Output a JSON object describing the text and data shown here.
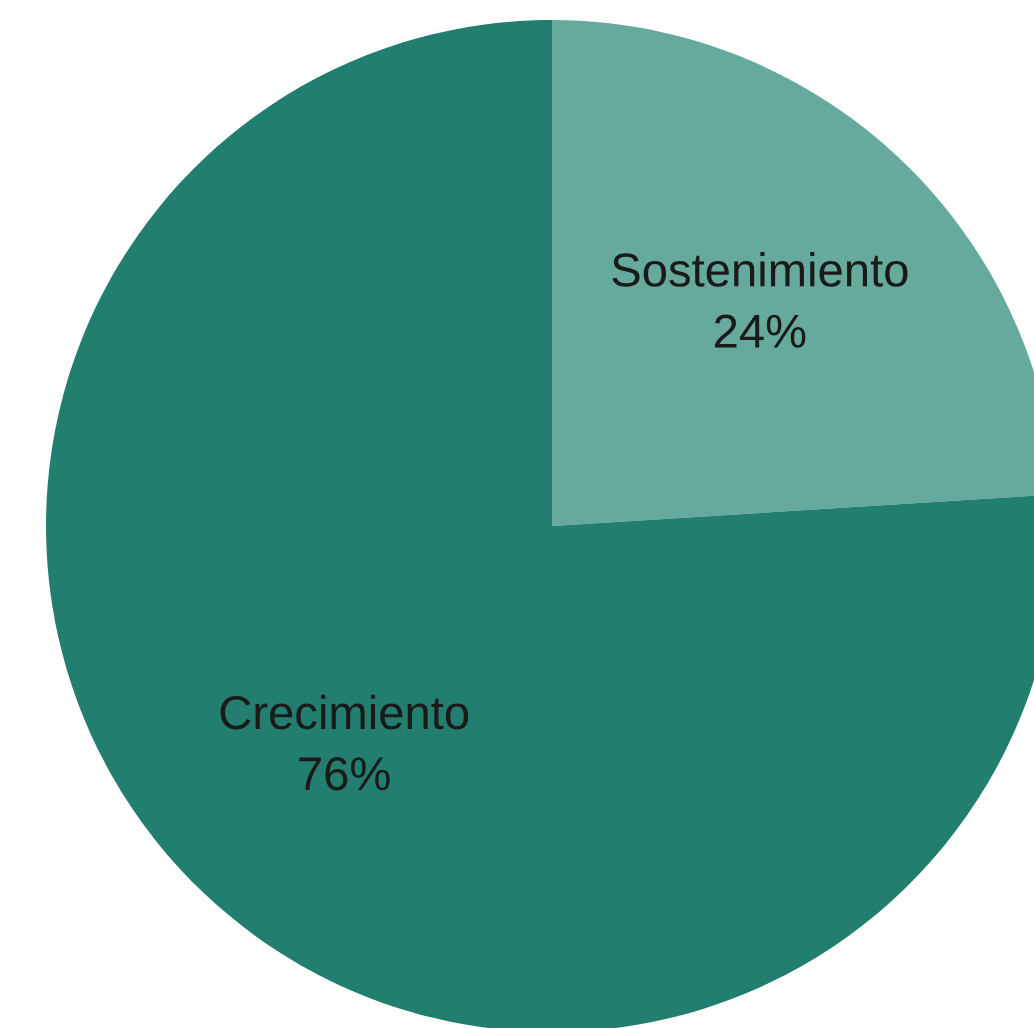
{
  "chart_data": {
    "type": "pie",
    "categories": [
      "Sostenimiento",
      "Crecimiento"
    ],
    "values": [
      24,
      76
    ],
    "colors": [
      "#66a99d",
      "#227f6f"
    ],
    "value_labels": [
      "24%",
      "76%"
    ],
    "legend": false
  }
}
